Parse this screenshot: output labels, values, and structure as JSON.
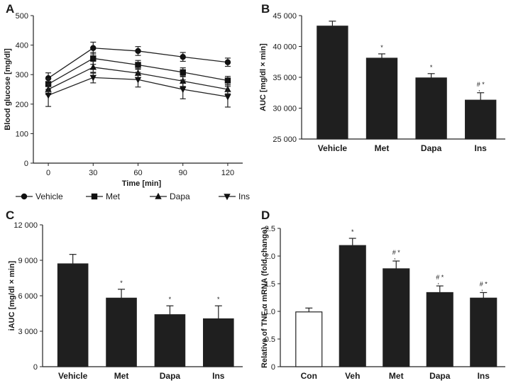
{
  "chart_data": [
    {
      "panel": "A",
      "type": "line",
      "xlabel": "Time [min]",
      "ylabel": "Blood glucose [mg/dl]",
      "x": [
        0,
        30,
        60,
        90,
        120
      ],
      "xticks": [
        "0",
        "30",
        "60",
        "90",
        "120"
      ],
      "ylim": [
        0,
        500
      ],
      "yticks": [
        "0",
        "100",
        "200",
        "300",
        "400",
        "500"
      ],
      "series": [
        {
          "name": "Vehicle",
          "marker": "circle",
          "values": [
            288,
            390,
            380,
            360,
            342
          ],
          "errors": [
            18,
            20,
            15,
            15,
            14
          ]
        },
        {
          "name": "Met",
          "marker": "square",
          "values": [
            268,
            355,
            333,
            308,
            280
          ],
          "errors": [
            18,
            20,
            15,
            15,
            14
          ]
        },
        {
          "name": "Dapa",
          "marker": "triangle-up",
          "values": [
            250,
            325,
            305,
            278,
            250
          ],
          "errors": [
            18,
            20,
            15,
            18,
            15
          ]
        },
        {
          "name": "Ins",
          "marker": "triangle-down",
          "values": [
            230,
            290,
            283,
            250,
            225
          ],
          "errors": [
            38,
            18,
            25,
            32,
            35
          ]
        }
      ]
    },
    {
      "panel": "B",
      "type": "bar",
      "categories": [
        "Vehicle",
        "Met",
        "Dapa",
        "Ins"
      ],
      "values": [
        43300,
        38100,
        34900,
        31300
      ],
      "errors": [
        800,
        700,
        700,
        1200
      ],
      "colors": [
        "#1f1f1f",
        "#1f1f1f",
        "#1f1f1f",
        "#1f1f1f"
      ],
      "annotations": [
        "",
        "*",
        "*",
        "# *\n,"
      ],
      "ylabel": "AUC [mg/dl × min]",
      "ylim": [
        25000,
        45000
      ],
      "yticks": [
        "25 000",
        "30 000",
        "35 000",
        "40 000",
        "45 000"
      ]
    },
    {
      "panel": "C",
      "type": "bar",
      "categories": [
        "Vehicle",
        "Met",
        "Dapa",
        "Ins"
      ],
      "values": [
        8700,
        5800,
        4400,
        4050
      ],
      "errors": [
        800,
        750,
        750,
        1100
      ],
      "colors": [
        "#1f1f1f",
        "#1f1f1f",
        "#1f1f1f",
        "#1f1f1f"
      ],
      "annotations": [
        "",
        "*",
        "*",
        "*"
      ],
      "ylabel": "iAUC [mg/dl × min]",
      "ylim": [
        0,
        12000
      ],
      "yticks": [
        "0",
        "3 000",
        "6 000",
        "9 000",
        "12 000"
      ]
    },
    {
      "panel": "D",
      "type": "bar",
      "categories": [
        "Con",
        "Veh",
        "Met",
        "Dapa",
        "Ins"
      ],
      "values": [
        0.99,
        2.19,
        1.77,
        1.34,
        1.24
      ],
      "errors": [
        0.07,
        0.13,
        0.14,
        0.12,
        0.1
      ],
      "colors": [
        "#ffffff",
        "#1f1f1f",
        "#1f1f1f",
        "#1f1f1f",
        "#1f1f1f"
      ],
      "annotations": [
        "",
        "*",
        "# *\n,",
        "# *\n,",
        "# *\n,"
      ],
      "ylabel": "Relative of TNF-α mRNA (fold change)",
      "ylim": [
        0,
        2.5
      ],
      "yticks": [
        "0",
        "0.5",
        "1.0",
        "1.5",
        "2.0",
        "2.5"
      ]
    }
  ]
}
